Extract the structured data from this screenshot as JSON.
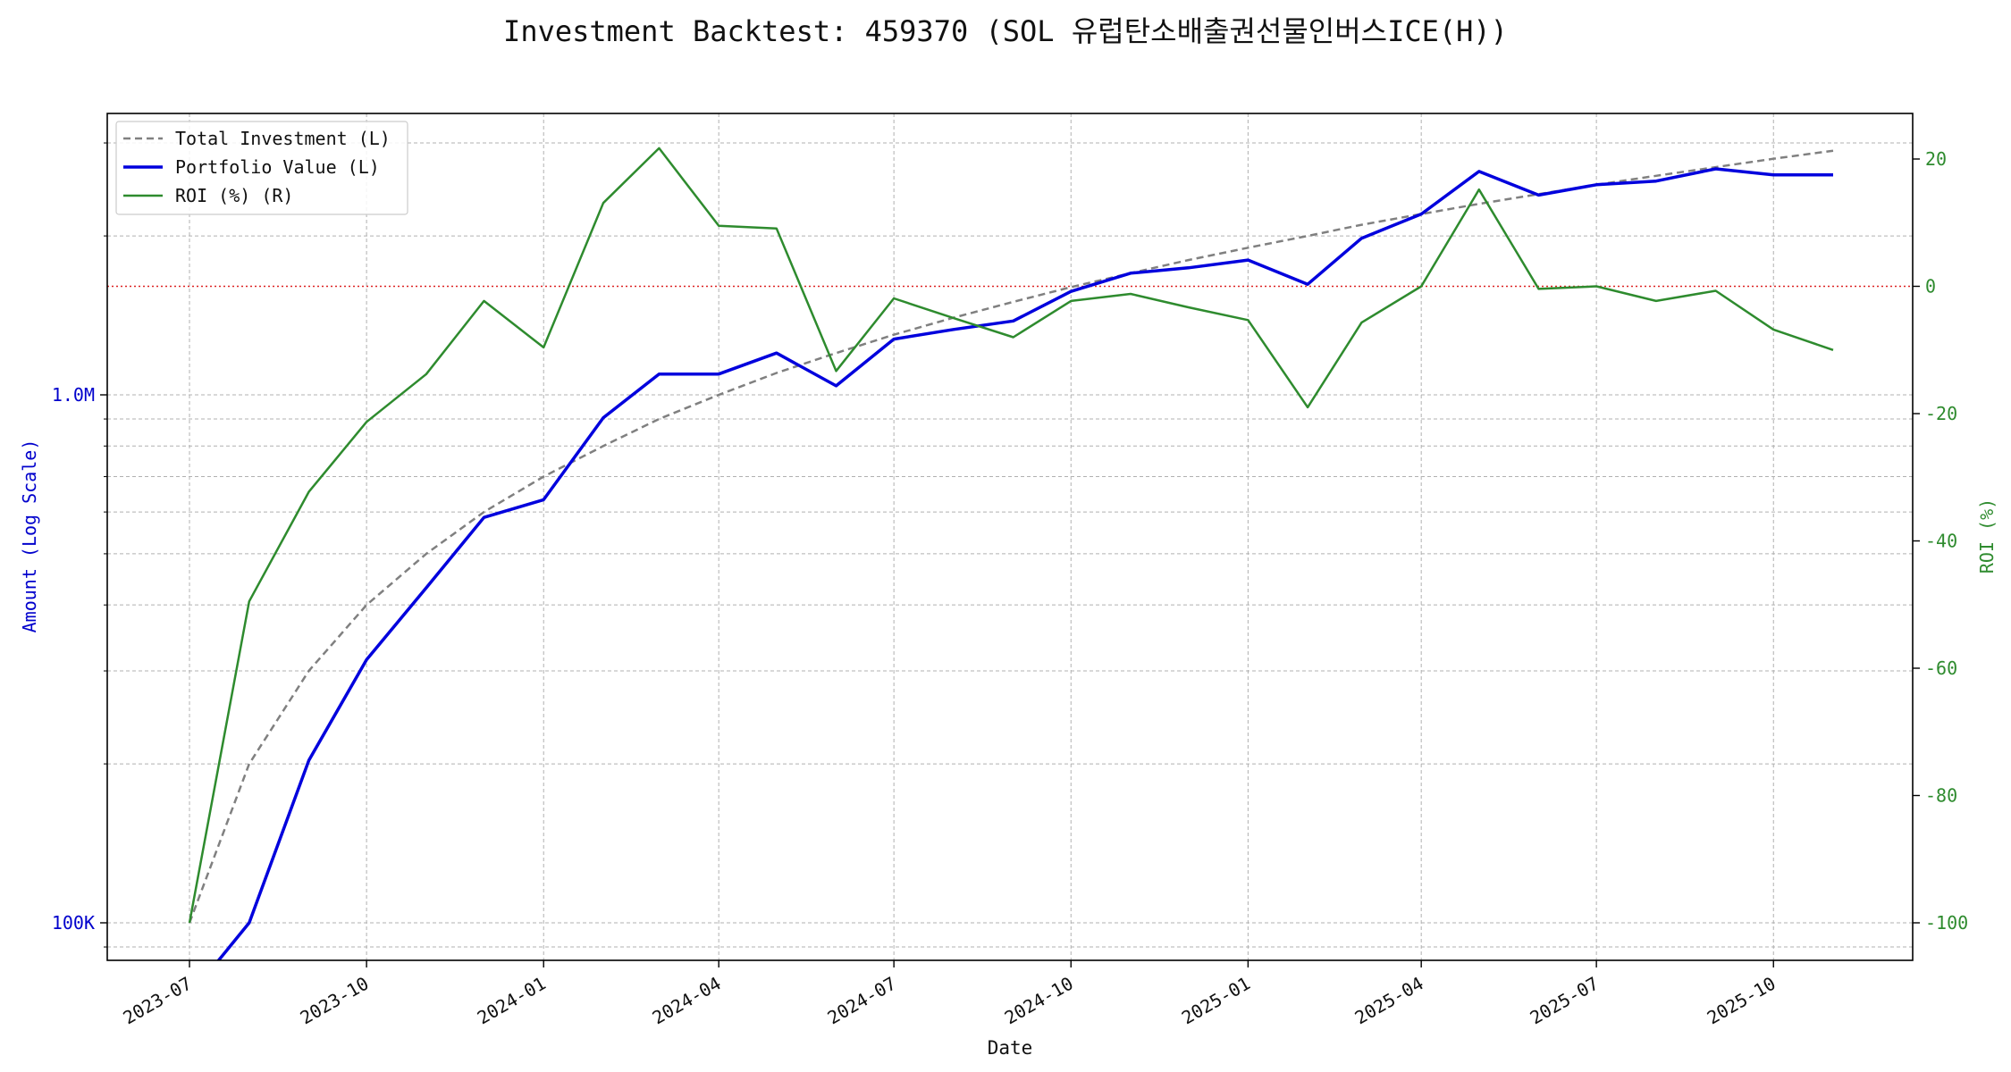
{
  "chart_data": {
    "type": "line",
    "title": "Investment Backtest: 459370 (SOL 유럽탄소배출권선물인버스ICE(H))",
    "xlabel": "Date",
    "ylabel_left": "Amount (Log Scale)",
    "ylabel_right": "ROI (%)",
    "left_scale": "log",
    "grid": true,
    "legend_placement": "top-left",
    "x_tick_labels": [
      "2023-07",
      "2023-10",
      "2024-01",
      "2024-04",
      "2024-07",
      "2024-10",
      "2025-01",
      "2025-04",
      "2025-07",
      "2025-10"
    ],
    "left_tick_labels": [
      {
        "value": 100000,
        "label": "100K"
      },
      {
        "value": 1000000,
        "label": "1.0M"
      }
    ],
    "right_ticks": [
      -100,
      -80,
      -60,
      -40,
      -20,
      0,
      20
    ],
    "right_ylim": [
      -106,
      27
    ],
    "roi_reference_line": 0,
    "x": [
      "2023-07-01",
      "2023-08-01",
      "2023-09-01",
      "2023-10-01",
      "2023-11-01",
      "2023-12-01",
      "2024-01-01",
      "2024-02-01",
      "2024-03-01",
      "2024-04-01",
      "2024-05-01",
      "2024-06-01",
      "2024-07-01",
      "2024-08-01",
      "2024-09-01",
      "2024-10-01",
      "2024-11-01",
      "2024-12-01",
      "2025-01-01",
      "2025-02-01",
      "2025-03-01",
      "2025-04-01",
      "2025-05-01",
      "2025-06-01",
      "2025-07-01",
      "2025-08-01",
      "2025-09-01",
      "2025-10-01",
      "2025-11-01"
    ],
    "series": [
      {
        "name": "Total Investment (L)",
        "axis": "left",
        "color": "#808080",
        "style": "dashed",
        "values": [
          100000,
          200000,
          300000,
          400000,
          500000,
          600000,
          700000,
          800000,
          900000,
          1000000,
          1100000,
          1200000,
          1300000,
          1400000,
          1500000,
          1600000,
          1700000,
          1800000,
          1900000,
          2000000,
          2100000,
          2200000,
          2300000,
          2400000,
          2500000,
          2600000,
          2700000,
          2800000,
          2900000
        ]
      },
      {
        "name": "Portfolio Value (L)",
        "axis": "left",
        "color": "#0000dd",
        "style": "solid",
        "values": [
          0,
          100000,
          203000,
          315000,
          431000,
          586000,
          633000,
          905000,
          1095000,
          1095000,
          1200000,
          1040000,
          1275000,
          1330000,
          1380000,
          1570000,
          1700000,
          1740000,
          1800000,
          1620000,
          1980000,
          2200000,
          2650000,
          2390000,
          2500000,
          2540000,
          2680000,
          2610000,
          2610000
        ]
      },
      {
        "name": "ROI (%) (R)",
        "axis": "right",
        "color": "#2e8b2e",
        "style": "solid",
        "values": [
          -100,
          -49.5,
          -32.3,
          -21.3,
          -13.8,
          -2.3,
          -9.6,
          13.1,
          21.7,
          9.5,
          9.1,
          -13.3,
          -1.9,
          -5.0,
          -8.0,
          -2.3,
          -1.2,
          -3.3,
          -5.3,
          -19.0,
          -5.7,
          0.0,
          15.2,
          -0.4,
          0.0,
          -2.3,
          -0.7,
          -6.8,
          -10.0
        ]
      }
    ]
  }
}
